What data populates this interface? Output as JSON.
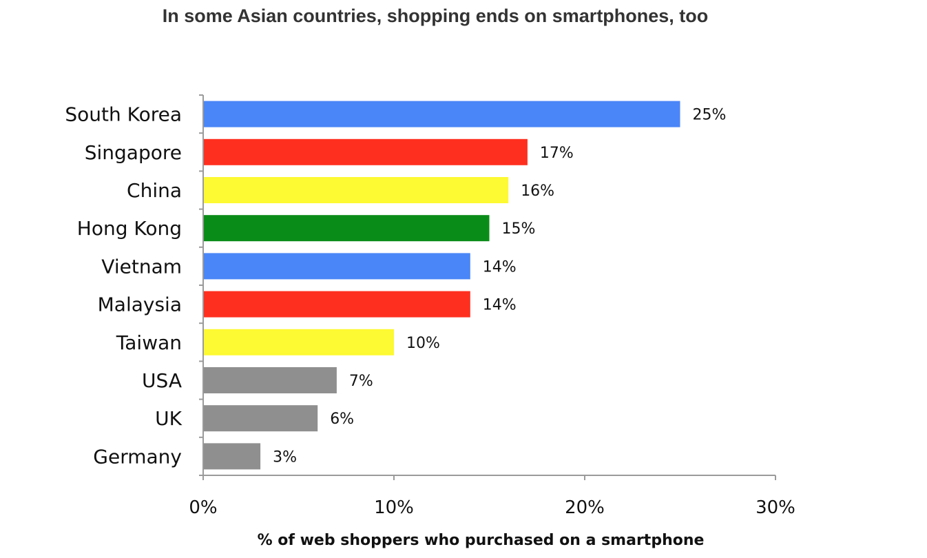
{
  "chart_data": {
    "type": "bar",
    "orientation": "horizontal",
    "title": "In some Asian countries, shopping ends on smartphones, too",
    "xlabel": "% of web shoppers who purchased on a smartphone",
    "ylabel": "",
    "xlim": [
      0,
      30
    ],
    "x_ticks": [
      "0%",
      "10%",
      "20%",
      "30%"
    ],
    "grid": false,
    "legend": "none",
    "categories": [
      "South Korea",
      "Singapore",
      "China",
      "Hong Kong",
      "Vietnam",
      "Malaysia",
      "Taiwan",
      "USA",
      "UK",
      "Germany"
    ],
    "values": [
      25,
      17,
      16,
      15,
      14,
      14,
      10,
      7,
      6,
      3
    ],
    "value_labels": [
      "25%",
      "17%",
      "16%",
      "15%",
      "14%",
      "14%",
      "10%",
      "7%",
      "6%",
      "3%"
    ],
    "bar_colors": [
      "#4a86f7",
      "#ff2f1f",
      "#fdf932",
      "#0a8c19",
      "#4a86f7",
      "#ff2f1f",
      "#fdf932",
      "#8f8f8f",
      "#8f8f8f",
      "#8f8f8f"
    ]
  }
}
